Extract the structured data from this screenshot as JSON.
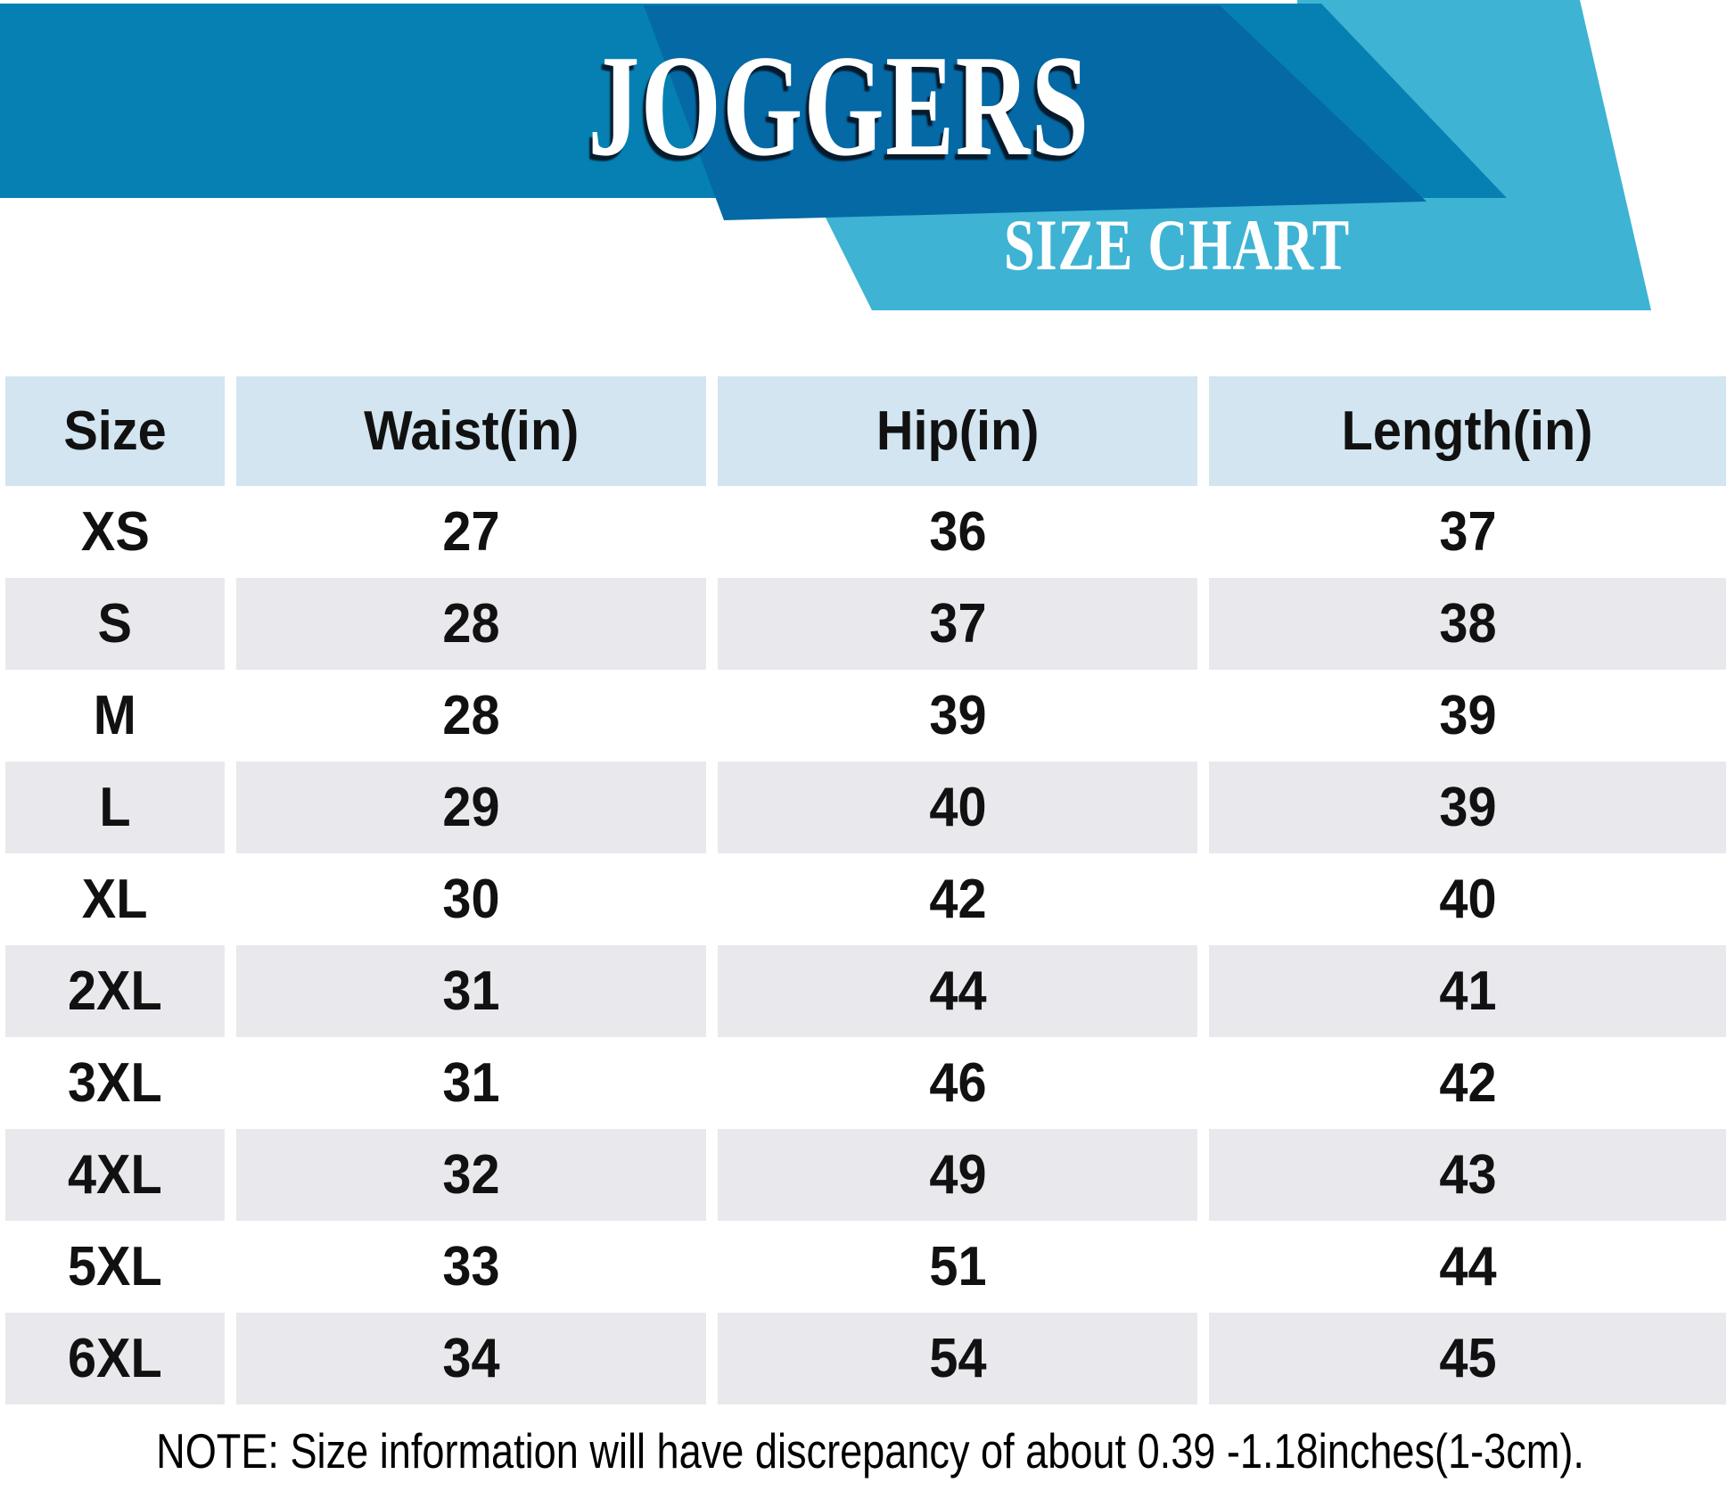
{
  "banner": {
    "title": "JOGGERS",
    "subtitle": "SIZE CHART"
  },
  "colors": {
    "banner_blue": "#0680b2",
    "banner_dark_blue": "#0469a5",
    "banner_cyan": "#3eb3d4",
    "header_bg": "#d2e5f0",
    "row_alt_bg": "#e9e9ed",
    "text": "#111111"
  },
  "table": {
    "columns": [
      "Size",
      "Waist(in)",
      "Hip(in)",
      "Length(in)"
    ],
    "rows": [
      [
        "XS",
        "27",
        "36",
        "37"
      ],
      [
        "S",
        "28",
        "37",
        "38"
      ],
      [
        "M",
        "28",
        "39",
        "39"
      ],
      [
        "L",
        "29",
        "40",
        "39"
      ],
      [
        "XL",
        "30",
        "42",
        "40"
      ],
      [
        "2XL",
        "31",
        "44",
        "41"
      ],
      [
        "3XL",
        "31",
        "46",
        "42"
      ],
      [
        "4XL",
        "32",
        "49",
        "43"
      ],
      [
        "5XL",
        "33",
        "51",
        "44"
      ],
      [
        "6XL",
        "34",
        "54",
        "45"
      ]
    ]
  },
  "note": "NOTE: Size information will have discrepancy of about 0.39 -1.18inches(1-3cm).",
  "chart_data": {
    "type": "table",
    "title": "JOGGERS",
    "subtitle": "SIZE CHART",
    "columns": [
      "Size",
      "Waist(in)",
      "Hip(in)",
      "Length(in)"
    ],
    "rows": [
      [
        "XS",
        27,
        36,
        37
      ],
      [
        "S",
        28,
        37,
        38
      ],
      [
        "M",
        28,
        39,
        39
      ],
      [
        "L",
        29,
        40,
        39
      ],
      [
        "XL",
        30,
        42,
        40
      ],
      [
        "2XL",
        31,
        44,
        41
      ],
      [
        "3XL",
        31,
        46,
        42
      ],
      [
        "4XL",
        32,
        49,
        43
      ],
      [
        "5XL",
        33,
        51,
        44
      ],
      [
        "6XL",
        34,
        54,
        45
      ]
    ],
    "note": "NOTE: Size information will have discrepancy of about 0.39 -1.18inches(1-3cm)."
  }
}
